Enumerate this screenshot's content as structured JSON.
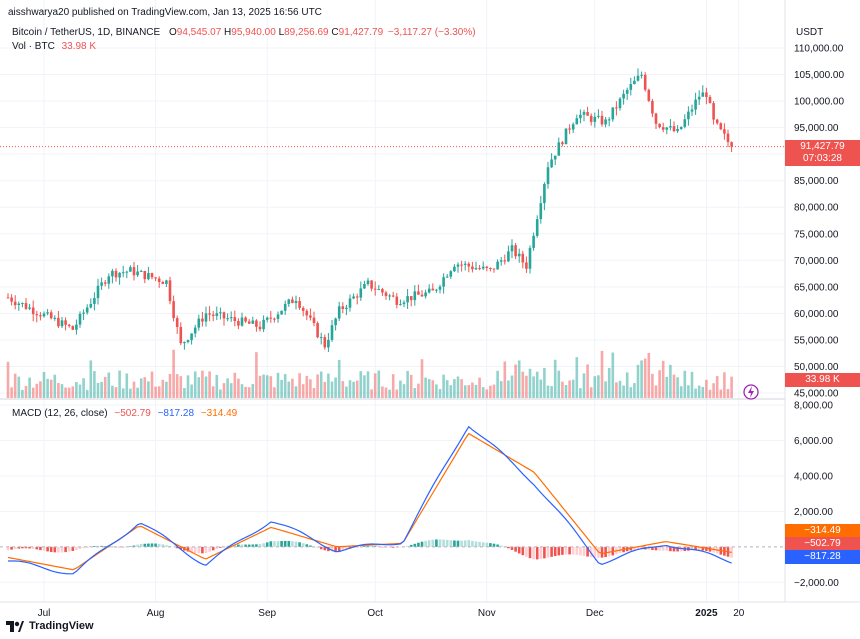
{
  "header": {
    "published": "aisshwarya20 published on TradingView.com, Jan 13, 2025 16:56 UTC",
    "symbol": "Bitcoin / TetherUS, 1D, BINANCE",
    "o_label": "O",
    "o_value": "94,545.07",
    "h_label": "H",
    "h_value": "95,940.00",
    "l_label": "L",
    "l_value": "89,256.69",
    "c_label": "C",
    "c_value": "91,427.79",
    "change": "−3,117.27 (−3.30%)",
    "vol_label": "Vol · BTC",
    "vol_value": "33.98 K",
    "currency": "USDT"
  },
  "price_tags": {
    "last_price": "91,427.79",
    "countdown": "07:03:28",
    "volume": "33.98 K"
  },
  "macd_header": {
    "label": "MACD (12, 26, close)",
    "hist_value": "−502.79",
    "macd_value": "−817.28",
    "signal_value": "−314.49"
  },
  "macd_tags": {
    "signal": "−314.49",
    "hist": "−502.79",
    "macd": "−817.28"
  },
  "footer": {
    "brand": "TradingView"
  },
  "colors": {
    "up": "#26a69a",
    "down": "#ef5350",
    "macd_line": "#2962ff",
    "signal_line": "#ff6d00",
    "grid": "#f0f3fa"
  },
  "chart_data": [
    {
      "type": "candlestick",
      "title": "Bitcoin / TetherUS, 1D, BINANCE",
      "ylabel": "USDT",
      "ylim": [
        45000,
        110000
      ],
      "y_ticks": [
        "110,000.00",
        "105,000.00",
        "100,000.00",
        "95,000.00",
        "90,000.00",
        "85,000.00",
        "80,000.00",
        "75,000.00",
        "70,000.00",
        "65,000.00",
        "60,000.00",
        "55,000.00",
        "50,000.00",
        "45,000.00"
      ],
      "x_ticks": [
        "Jul",
        "Aug",
        "Sep",
        "Oct",
        "Nov",
        "Dec",
        "2025",
        "20"
      ],
      "last_close": 91427.79,
      "volume_last": "33.98 K",
      "monthly_closes": [
        {
          "x": "Jul",
          "close": 62700
        },
        {
          "x": "Aug",
          "close": 64600
        },
        {
          "x": "Sep",
          "close": 58900
        },
        {
          "x": "Oct",
          "close": 60800
        },
        {
          "x": "Nov",
          "close": 70200
        },
        {
          "x": "Dec",
          "close": 96400
        },
        {
          "x": "2025",
          "close": 94500
        },
        {
          "x": "Jan 13",
          "close": 91427.79
        }
      ]
    },
    {
      "type": "line",
      "title": "MACD (12, 26, close)",
      "ylim": [
        -3000,
        8000
      ],
      "y_ticks": [
        "8,000.00",
        "6,000.00",
        "4,000.00",
        "2,000.00",
        "0.00",
        "−2,000.00"
      ],
      "series": [
        {
          "name": "MACD",
          "values": [
            -800,
            -1500,
            1400,
            -1000,
            1500,
            -200,
            300,
            6900,
            3600,
            -900,
            200,
            -817.28
          ]
        },
        {
          "name": "Signal",
          "values": [
            -600,
            -1300,
            1200,
            -700,
            1100,
            0,
            200,
            6400,
            4200,
            -400,
            300,
            -314.49
          ]
        },
        {
          "name": "Histogram",
          "values": [
            -200,
            -200,
            200,
            -300,
            400,
            -200,
            100,
            500,
            -600,
            -500,
            -100,
            -502.79
          ]
        }
      ]
    }
  ]
}
